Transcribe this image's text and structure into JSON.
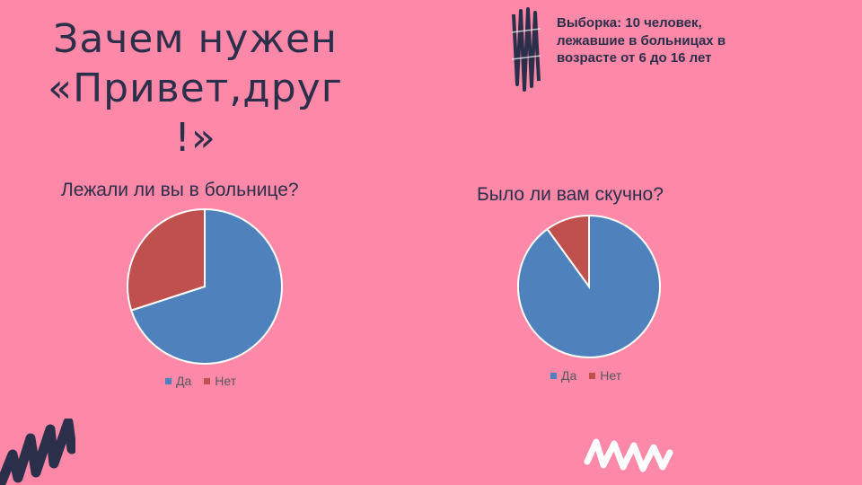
{
  "title_lines": [
    "Зачем нужен",
    "«Привет,друг",
    "!»"
  ],
  "note": "Выборка: 10 человек, лежавшие в больницах в возрасте от 6 до 16 лет",
  "colors": {
    "background": "#fe88a8",
    "text": "#2b2f4a",
    "yes": "#4f81bd",
    "no": "#c0504d",
    "decor_dark": "#2b2f4a",
    "decor_light": "#ffffff"
  },
  "chart_data": [
    {
      "type": "pie",
      "title": "Лежали ли вы в больнице?",
      "categories": [
        "Да",
        "Нет"
      ],
      "values": [
        7,
        3
      ],
      "legend": "bottom"
    },
    {
      "type": "pie",
      "title": "Было ли вам скучно?",
      "categories": [
        "Да",
        "Нет"
      ],
      "values": [
        9,
        1
      ],
      "legend": "bottom"
    }
  ]
}
